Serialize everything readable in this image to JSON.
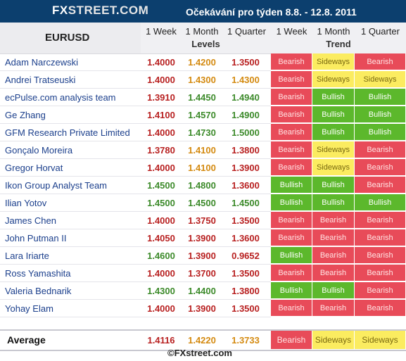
{
  "header": {
    "logo_fx": "FX",
    "logo_street": "STREET",
    "logo_dot": ".",
    "logo_com": "COM",
    "title": "Očekávání pro týden 8.8. - 12.8. 2011"
  },
  "table": {
    "pair": "EURUSD",
    "horizons": [
      "1 Week",
      "1 Month",
      "1 Quarter"
    ],
    "levels_label": "Levels",
    "trend_label": "Trend"
  },
  "colors": {
    "bearish": "#e84b59",
    "bullish": "#5cb82c",
    "sideways": "#fbec60",
    "week_red": "#b82020",
    "month_orange": "#d48a10",
    "green_num": "#3c8a2a"
  },
  "rows": [
    {
      "name": "Adam Narczewski",
      "l1": "1.4000",
      "l2": "1.4200",
      "l3": "1.3500",
      "c1": "red",
      "c2": "orange",
      "c3": "red",
      "t1": "Bearish",
      "t2": "Sideways",
      "t3": "Bearish"
    },
    {
      "name": "Andrei Tratseuski",
      "l1": "1.4000",
      "l2": "1.4300",
      "l3": "1.4300",
      "c1": "red",
      "c2": "orange",
      "c3": "orange",
      "t1": "Bearish",
      "t2": "Sideways",
      "t3": "Sideways"
    },
    {
      "name": "ecPulse.com analysis team",
      "l1": "1.3910",
      "l2": "1.4450",
      "l3": "1.4940",
      "c1": "red",
      "c2": "green",
      "c3": "green",
      "t1": "Bearish",
      "t2": "Bullish",
      "t3": "Bullish"
    },
    {
      "name": "Ge Zhang",
      "l1": "1.4100",
      "l2": "1.4570",
      "l3": "1.4900",
      "c1": "red",
      "c2": "green",
      "c3": "green",
      "t1": "Bearish",
      "t2": "Bullish",
      "t3": "Bullish"
    },
    {
      "name": "GFM Research Private Limited",
      "l1": "1.4000",
      "l2": "1.4730",
      "l3": "1.5000",
      "c1": "red",
      "c2": "green",
      "c3": "green",
      "t1": "Bearish",
      "t2": "Bullish",
      "t3": "Bullish"
    },
    {
      "name": "Gonçalo Moreira",
      "l1": "1.3780",
      "l2": "1.4100",
      "l3": "1.3800",
      "c1": "red",
      "c2": "orange",
      "c3": "red",
      "t1": "Bearish",
      "t2": "Sideways",
      "t3": "Bearish"
    },
    {
      "name": "Gregor Horvat",
      "l1": "1.4000",
      "l2": "1.4100",
      "l3": "1.3900",
      "c1": "red",
      "c2": "orange",
      "c3": "red",
      "t1": "Bearish",
      "t2": "Sideways",
      "t3": "Bearish"
    },
    {
      "name": "Ikon Group Analyst Team",
      "l1": "1.4500",
      "l2": "1.4800",
      "l3": "1.3600",
      "c1": "green",
      "c2": "green",
      "c3": "red",
      "t1": "Bullish",
      "t2": "Bullish",
      "t3": "Bearish"
    },
    {
      "name": "Ilian Yotov",
      "l1": "1.4500",
      "l2": "1.4500",
      "l3": "1.4500",
      "c1": "green",
      "c2": "green",
      "c3": "green",
      "t1": "Bullish",
      "t2": "Bullish",
      "t3": "Bullish"
    },
    {
      "name": "James Chen",
      "l1": "1.4000",
      "l2": "1.3750",
      "l3": "1.3500",
      "c1": "red",
      "c2": "red",
      "c3": "red",
      "t1": "Bearish",
      "t2": "Bearish",
      "t3": "Bearish"
    },
    {
      "name": "John Putman II",
      "l1": "1.4050",
      "l2": "1.3900",
      "l3": "1.3600",
      "c1": "red",
      "c2": "red",
      "c3": "red",
      "t1": "Bearish",
      "t2": "Bearish",
      "t3": "Bearish"
    },
    {
      "name": "Lara Iriarte",
      "l1": "1.4600",
      "l2": "1.3900",
      "l3": "0.9652",
      "c1": "green",
      "c2": "red",
      "c3": "red",
      "t1": "Bullish",
      "t2": "Bearish",
      "t3": "Bearish"
    },
    {
      "name": "Ross Yamashita",
      "l1": "1.4000",
      "l2": "1.3700",
      "l3": "1.3500",
      "c1": "red",
      "c2": "red",
      "c3": "red",
      "t1": "Bearish",
      "t2": "Bearish",
      "t3": "Bearish"
    },
    {
      "name": "Valeria Bednarik",
      "l1": "1.4300",
      "l2": "1.4400",
      "l3": "1.3800",
      "c1": "green",
      "c2": "green",
      "c3": "red",
      "t1": "Bullish",
      "t2": "Bullish",
      "t3": "Bearish"
    },
    {
      "name": "Yohay Elam",
      "l1": "1.4000",
      "l2": "1.3900",
      "l3": "1.3500",
      "c1": "red",
      "c2": "red",
      "c3": "red",
      "t1": "Bearish",
      "t2": "Bearish",
      "t3": "Bearish"
    }
  ],
  "average": {
    "label": "Average",
    "l1": "1.4116",
    "l2": "1.4220",
    "l3": "1.3733",
    "t1": "Bearish",
    "t2": "Sideways",
    "t3": "Sideways"
  },
  "footer": {
    "copyright": "©FXstreet.com"
  }
}
